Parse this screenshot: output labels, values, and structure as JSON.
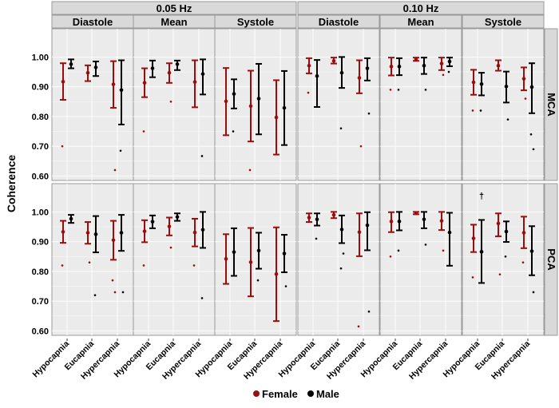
{
  "chart_data": {
    "type": "scatter",
    "subtype": "dot-and-errorbar faceted plot",
    "ylabel": "Coherence",
    "ylim": [
      0.585,
      1.095
    ],
    "yticks": [
      "0.60",
      "0.70",
      "0.80",
      "0.90",
      "1.00"
    ],
    "ytick_values": [
      0.6,
      0.7,
      0.8,
      0.9,
      1.0
    ],
    "grid": true,
    "categories": [
      "Hypocapnia",
      "Eucapnia",
      "Hypercapnia"
    ],
    "frequencies": [
      "0.05 Hz",
      "0.10 Hz"
    ],
    "phases": [
      "Diastole",
      "Mean",
      "Systole"
    ],
    "arteries": [
      "MCA",
      "PCA"
    ],
    "legend": {
      "position": "bottom",
      "entries": [
        "Female",
        "Male"
      ]
    },
    "colors": {
      "Female": "#9b0d0d",
      "Male": "#000000"
    },
    "value_format": "[mean, lower, upper] per category",
    "panels": [
      {
        "artery": "MCA",
        "freq": 0,
        "phase": 0,
        "female": [
          [
            0.917,
            0.856,
            0.979
          ],
          [
            0.947,
            0.919,
            0.972
          ],
          [
            0.908,
            0.829,
            0.986
          ]
        ],
        "male": [
          [
            0.976,
            0.962,
            0.992
          ],
          [
            0.965,
            0.936,
            0.985
          ],
          [
            0.889,
            0.773,
            0.989
          ]
        ],
        "female_outliers": [
          [
            0,
            0.7
          ],
          [
            2,
            0.62
          ]
        ],
        "male_outliers": [
          [
            2,
            0.685
          ]
        ]
      },
      {
        "artery": "MCA",
        "freq": 0,
        "phase": 1,
        "female": [
          [
            0.913,
            0.865,
            0.962
          ],
          [
            0.947,
            0.913,
            0.979
          ],
          [
            0.916,
            0.831,
            0.989
          ]
        ],
        "male": [
          [
            0.962,
            0.932,
            0.988
          ],
          [
            0.976,
            0.956,
            0.988
          ],
          [
            0.943,
            0.874,
            0.992
          ]
        ],
        "female_outliers": [
          [
            0,
            0.75
          ],
          [
            1,
            0.85
          ]
        ],
        "male_outliers": [
          [
            2,
            0.667
          ]
        ]
      },
      {
        "artery": "MCA",
        "freq": 0,
        "phase": 2,
        "female": [
          [
            0.851,
            0.737,
            0.963
          ],
          [
            0.835,
            0.716,
            0.954
          ],
          [
            0.797,
            0.672,
            0.922
          ]
        ],
        "male": [
          [
            0.876,
            0.827,
            0.925
          ],
          [
            0.86,
            0.74,
            0.977
          ],
          [
            0.829,
            0.704,
            0.953
          ]
        ],
        "female_outliers": [
          [
            1,
            0.62
          ]
        ],
        "male_outliers": [
          [
            0,
            0.75
          ]
        ]
      },
      {
        "artery": "MCA",
        "freq": 1,
        "phase": 0,
        "female": [
          [
            0.971,
            0.945,
            0.996
          ],
          [
            0.987,
            0.978,
            0.998
          ],
          [
            0.93,
            0.878,
            0.989
          ]
        ],
        "male": [
          [
            0.936,
            0.832,
            0.99
          ],
          [
            0.947,
            0.896,
            1.0
          ],
          [
            0.962,
            0.921,
            0.996
          ]
        ],
        "female_outliers": [
          [
            0,
            0.88
          ],
          [
            2,
            0.7
          ]
        ],
        "male_outliers": [
          [
            1,
            0.76
          ],
          [
            2,
            0.81
          ]
        ]
      },
      {
        "artery": "MCA",
        "freq": 1,
        "phase": 1,
        "female": [
          [
            0.968,
            0.938,
            0.998
          ],
          [
            0.992,
            0.987,
            0.998
          ],
          [
            0.978,
            0.956,
            0.998
          ]
        ],
        "male": [
          [
            0.968,
            0.939,
            0.996
          ],
          [
            0.971,
            0.943,
            0.998
          ],
          [
            0.985,
            0.969,
            0.998
          ]
        ],
        "female_outliers": [
          [
            0,
            0.89
          ],
          [
            2,
            0.94
          ]
        ],
        "male_outliers": [
          [
            0,
            0.89
          ],
          [
            1,
            0.89
          ],
          [
            2,
            0.95
          ]
        ]
      },
      {
        "artery": "MCA",
        "freq": 1,
        "phase": 2,
        "female": [
          [
            0.915,
            0.873,
            0.957
          ],
          [
            0.971,
            0.954,
            0.989
          ],
          [
            0.927,
            0.888,
            0.965
          ]
        ],
        "male": [
          [
            0.909,
            0.871,
            0.947
          ],
          [
            0.901,
            0.847,
            0.951
          ],
          [
            0.899,
            0.811,
            0.979
          ]
        ],
        "female_outliers": [
          [
            0,
            0.82
          ],
          [
            2,
            0.86
          ]
        ],
        "male_outliers": [
          [
            0,
            0.82
          ],
          [
            1,
            0.79
          ],
          [
            2,
            0.74
          ],
          [
            2,
            0.69
          ]
        ]
      },
      {
        "artery": "PCA",
        "freq": 0,
        "phase": 0,
        "female": [
          [
            0.933,
            0.896,
            0.97
          ],
          [
            0.93,
            0.893,
            0.966
          ],
          [
            0.905,
            0.839,
            0.97
          ]
        ],
        "male": [
          [
            0.977,
            0.963,
            0.99
          ],
          [
            0.925,
            0.864,
            0.986
          ],
          [
            0.93,
            0.869,
            0.99
          ]
        ],
        "female_outliers": [
          [
            0,
            0.82
          ],
          [
            1,
            0.83
          ],
          [
            2,
            0.77
          ],
          [
            2,
            0.73
          ]
        ],
        "male_outliers": [
          [
            1,
            0.72
          ],
          [
            2,
            0.73
          ]
        ]
      },
      {
        "artery": "PCA",
        "freq": 0,
        "phase": 1,
        "female": [
          [
            0.935,
            0.898,
            0.972
          ],
          [
            0.951,
            0.921,
            0.981
          ],
          [
            0.931,
            0.884,
            0.977
          ]
        ],
        "male": [
          [
            0.967,
            0.945,
            0.988
          ],
          [
            0.983,
            0.97,
            0.995
          ],
          [
            0.94,
            0.879,
            1.0
          ]
        ],
        "female_outliers": [
          [
            0,
            0.82
          ],
          [
            1,
            0.88
          ],
          [
            2,
            0.82
          ]
        ],
        "male_outliers": [
          [
            2,
            0.71
          ]
        ]
      },
      {
        "artery": "PCA",
        "freq": 0,
        "phase": 2,
        "female": [
          [
            0.842,
            0.758,
            0.925
          ],
          [
            0.831,
            0.716,
            0.946
          ],
          [
            0.791,
            0.633,
            0.948
          ]
        ],
        "male": [
          [
            0.865,
            0.785,
            0.945
          ],
          [
            0.87,
            0.809,
            0.93
          ],
          [
            0.86,
            0.797,
            0.923
          ]
        ],
        "female_outliers": [],
        "male_outliers": [
          [
            1,
            0.77
          ],
          [
            2,
            0.75
          ]
        ]
      },
      {
        "artery": "PCA",
        "freq": 1,
        "phase": 0,
        "female": [
          [
            0.981,
            0.966,
            0.995
          ],
          [
            0.99,
            0.979,
            1.0
          ],
          [
            0.932,
            0.851,
            0.995
          ]
        ],
        "male": [
          [
            0.975,
            0.954,
            0.995
          ],
          [
            0.941,
            0.895,
            0.988
          ],
          [
            0.955,
            0.871,
            0.999
          ]
        ],
        "female_outliers": [
          [
            2,
            0.615
          ]
        ],
        "male_outliers": [
          [
            0,
            0.91
          ],
          [
            1,
            0.86
          ],
          [
            1,
            0.81
          ],
          [
            2,
            0.665
          ]
        ]
      },
      {
        "artery": "PCA",
        "freq": 1,
        "phase": 1,
        "female": [
          [
            0.968,
            0.932,
            0.999
          ],
          [
            0.996,
            0.992,
            1.0
          ],
          [
            0.97,
            0.939,
            1.0
          ]
        ],
        "male": [
          [
            0.968,
            0.938,
            1.0
          ],
          [
            0.975,
            0.945,
            1.0
          ],
          [
            0.931,
            0.819,
            0.997
          ]
        ],
        "female_outliers": [
          [
            0,
            0.85
          ],
          [
            2,
            0.87
          ]
        ],
        "male_outliers": [
          [
            0,
            0.87
          ],
          [
            1,
            0.89
          ]
        ]
      },
      {
        "artery": "PCA",
        "freq": 1,
        "phase": 2,
        "female": [
          [
            0.911,
            0.865,
            0.957
          ],
          [
            0.961,
            0.918,
            0.995
          ],
          [
            0.93,
            0.878,
            0.984
          ]
        ],
        "male": [
          [
            0.866,
            0.761,
            0.973
          ],
          [
            0.934,
            0.899,
            0.968
          ],
          [
            0.868,
            0.787,
            0.952
          ]
        ],
        "female_outliers": [
          [
            0,
            0.78
          ],
          [
            1,
            0.79
          ],
          [
            2,
            0.83
          ]
        ],
        "male_outliers": [
          [
            1,
            0.85
          ],
          [
            2,
            0.73
          ]
        ]
      }
    ],
    "annotations": [
      {
        "text": "†",
        "artery": "PCA",
        "freq": 1,
        "phase": 2,
        "category": 0,
        "sex": "Male",
        "y": 1.055
      }
    ]
  }
}
